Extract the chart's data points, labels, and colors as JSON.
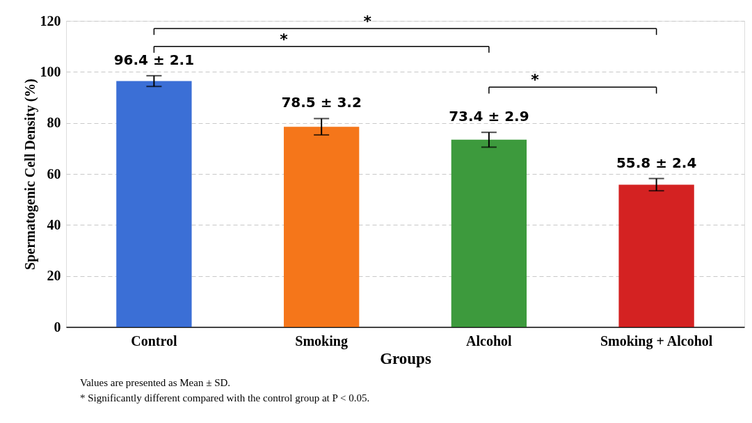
{
  "chart_data": {
    "type": "bar",
    "xlabel": "Groups",
    "ylabel": "Spermatogenic Cell Density (%)",
    "categories": [
      "Control",
      "Smoking",
      "Alcohol",
      "Smoking + Alcohol"
    ],
    "values": [
      96.4,
      78.5,
      73.4,
      55.8
    ],
    "errors": [
      2.1,
      3.2,
      2.9,
      2.4
    ],
    "colors": [
      "#3b6fd6",
      "#f5761a",
      "#3d9a3d",
      "#d42222"
    ],
    "value_labels": [
      "96.4 ± 2.1",
      "78.5 ± 3.2",
      "73.4 ± 2.9",
      "55.8 ± 2.4"
    ],
    "ylim": [
      0,
      120
    ],
    "yticks": [
      0,
      20,
      40,
      60,
      80,
      100,
      120
    ],
    "grid": "y",
    "legend": false,
    "annotations": [
      "*",
      "*",
      "*",
      "Values are presented as Mean ± SD.",
      "* Significantly different compared with the control group at P < 0.05."
    ]
  }
}
